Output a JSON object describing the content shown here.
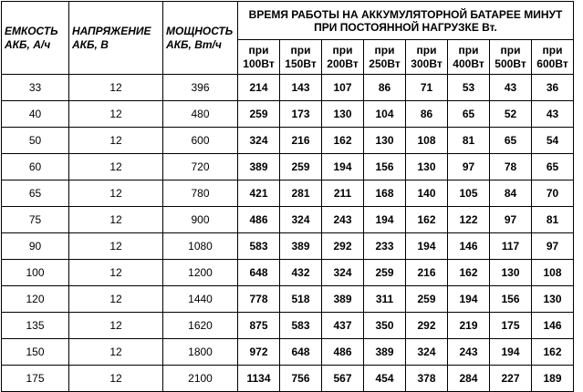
{
  "header": {
    "capacity": [
      "ЕМКОСТЬ",
      "АКБ, А/ч"
    ],
    "voltage": [
      "НАПРЯЖЕНИЕ",
      "АКБ, В"
    ],
    "power": [
      "МОЩНОСТЬ",
      "АКБ, Вт/ч"
    ],
    "runtime_title": [
      "ВРЕМЯ РАБОТЫ НА АККУМУЛЯТОРНОЙ БАТАРЕЕ МИНУТ",
      "ПРИ ПОСТОЯННОЙ НАГРУЗКЕ Вт."
    ],
    "load_columns": [
      [
        "при",
        "100Вт"
      ],
      [
        "при",
        "150Вт"
      ],
      [
        "при",
        "200Вт"
      ],
      [
        "при",
        "250Вт"
      ],
      [
        "при",
        "300Вт"
      ],
      [
        "при",
        "400Вт"
      ],
      [
        "при",
        "500Вт"
      ],
      [
        "при",
        "600Вт"
      ]
    ]
  },
  "rows": [
    [
      "33",
      "12",
      "396",
      "214",
      "143",
      "107",
      "86",
      "71",
      "53",
      "43",
      "36"
    ],
    [
      "40",
      "12",
      "480",
      "259",
      "173",
      "130",
      "104",
      "86",
      "65",
      "52",
      "43"
    ],
    [
      "50",
      "12",
      "600",
      "324",
      "216",
      "162",
      "130",
      "108",
      "81",
      "65",
      "54"
    ],
    [
      "60",
      "12",
      "720",
      "389",
      "259",
      "194",
      "156",
      "130",
      "97",
      "78",
      "65"
    ],
    [
      "65",
      "12",
      "780",
      "421",
      "281",
      "211",
      "168",
      "140",
      "105",
      "84",
      "70"
    ],
    [
      "75",
      "12",
      "900",
      "486",
      "324",
      "243",
      "194",
      "162",
      "122",
      "97",
      "81"
    ],
    [
      "90",
      "12",
      "1080",
      "583",
      "389",
      "292",
      "233",
      "194",
      "146",
      "117",
      "97"
    ],
    [
      "100",
      "12",
      "1200",
      "648",
      "432",
      "324",
      "259",
      "216",
      "162",
      "130",
      "108"
    ],
    [
      "120",
      "12",
      "1440",
      "778",
      "518",
      "389",
      "311",
      "259",
      "194",
      "156",
      "130"
    ],
    [
      "135",
      "12",
      "1620",
      "875",
      "583",
      "437",
      "350",
      "292",
      "219",
      "175",
      "146"
    ],
    [
      "150",
      "12",
      "1800",
      "972",
      "648",
      "486",
      "389",
      "324",
      "243",
      "194",
      "162"
    ],
    [
      "175",
      "12",
      "2100",
      "1134",
      "756",
      "567",
      "454",
      "378",
      "284",
      "227",
      "189"
    ]
  ]
}
